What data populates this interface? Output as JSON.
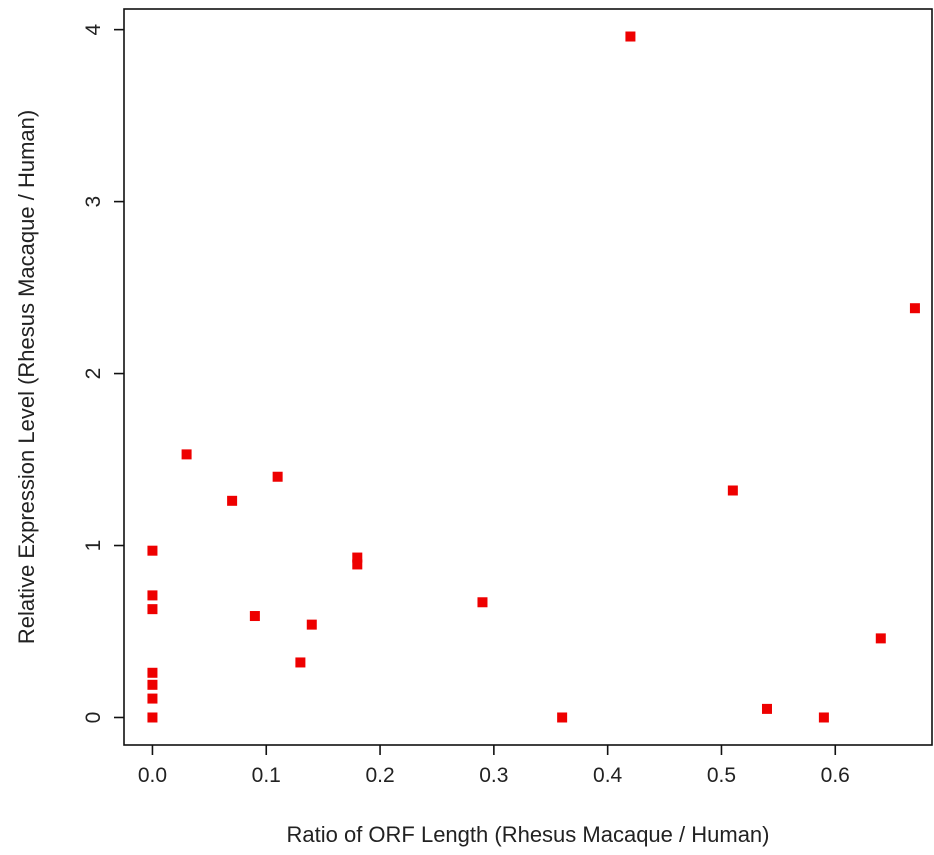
{
  "chart_data": {
    "type": "scatter",
    "title": "",
    "xlabel": "Ratio of ORF Length (Rhesus Macaque / Human)",
    "ylabel": "Relative Expression Level (Rhesus Macaque / Human)",
    "xlim": [
      -0.025,
      0.685
    ],
    "ylim": [
      -0.16,
      4.12
    ],
    "x_ticks": [
      0.0,
      0.1,
      0.2,
      0.3,
      0.4,
      0.5,
      0.6
    ],
    "x_tick_labels": [
      "0.0",
      "0.1",
      "0.2",
      "0.3",
      "0.4",
      "0.5",
      "0.6"
    ],
    "y_ticks": [
      0,
      1,
      2,
      3,
      4
    ],
    "y_tick_labels": [
      "0",
      "1",
      "2",
      "3",
      "4"
    ],
    "grid": false,
    "marker_color": "#ee0000",
    "points": [
      {
        "x": 0.0,
        "y": 0.97
      },
      {
        "x": 0.0,
        "y": 0.71
      },
      {
        "x": 0.0,
        "y": 0.63
      },
      {
        "x": 0.0,
        "y": 0.26
      },
      {
        "x": 0.0,
        "y": 0.19
      },
      {
        "x": 0.0,
        "y": 0.11
      },
      {
        "x": 0.0,
        "y": 0.0
      },
      {
        "x": 0.03,
        "y": 1.53
      },
      {
        "x": 0.07,
        "y": 1.26
      },
      {
        "x": 0.09,
        "y": 0.59
      },
      {
        "x": 0.11,
        "y": 1.4
      },
      {
        "x": 0.13,
        "y": 0.32
      },
      {
        "x": 0.14,
        "y": 0.54
      },
      {
        "x": 0.18,
        "y": 0.93
      },
      {
        "x": 0.18,
        "y": 0.89
      },
      {
        "x": 0.29,
        "y": 0.67
      },
      {
        "x": 0.36,
        "y": 0.0
      },
      {
        "x": 0.42,
        "y": 3.96
      },
      {
        "x": 0.51,
        "y": 1.32
      },
      {
        "x": 0.54,
        "y": 0.05
      },
      {
        "x": 0.59,
        "y": 0.0
      },
      {
        "x": 0.64,
        "y": 0.46
      },
      {
        "x": 0.67,
        "y": 2.38
      }
    ]
  }
}
